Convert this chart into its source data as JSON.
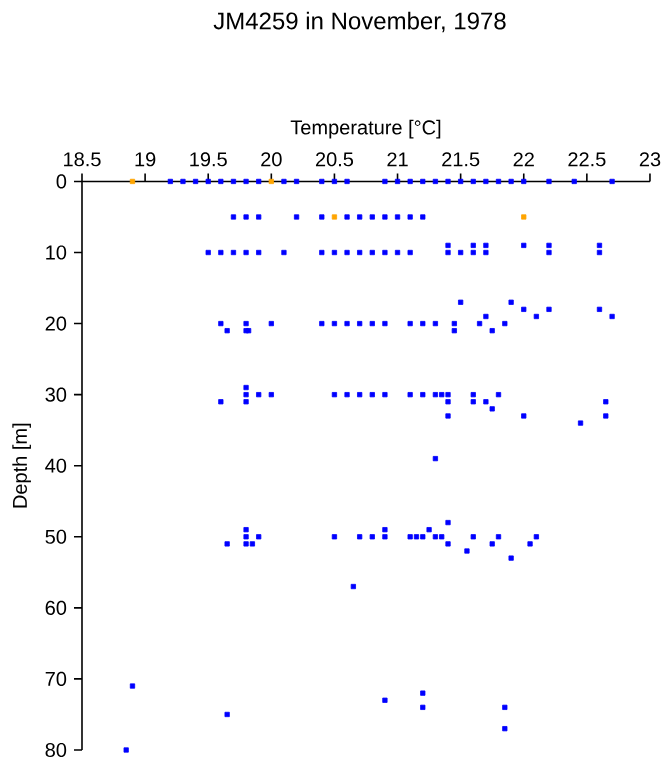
{
  "chart_data": {
    "type": "scatter",
    "title": "JM4259 in November, 1978",
    "xlabel": "Temperature [°C]",
    "ylabel": "Depth [m]",
    "xlim": [
      18.5,
      23
    ],
    "xticks": [
      18.5,
      19,
      19.5,
      20,
      20.5,
      21,
      21.5,
      22,
      22.5,
      23
    ],
    "ylim": [
      80,
      0
    ],
    "yticks": [
      0,
      10,
      20,
      30,
      40,
      50,
      60,
      70,
      80
    ],
    "marker": "square",
    "series": [
      {
        "color": "#0000ff",
        "x": [
          19.2,
          19.3,
          19.4,
          19.5,
          19.6,
          19.7,
          19.8,
          19.9,
          20.1,
          20.2,
          20.4,
          20.5,
          20.6,
          20.9,
          21.0,
          21.1,
          21.2,
          21.3,
          21.4,
          21.5,
          21.6,
          21.7,
          21.8,
          21.9,
          22.0,
          22.2,
          22.4,
          22.7,
          19.7,
          19.8,
          19.9,
          20.2,
          20.4,
          20.6,
          20.7,
          20.8,
          20.9,
          21.0,
          21.1,
          21.2,
          19.5,
          19.6,
          19.7,
          19.8,
          19.9,
          20.1,
          20.4,
          20.5,
          20.6,
          20.7,
          20.8,
          20.9,
          21.0,
          21.1,
          21.4,
          21.5,
          21.6,
          21.7,
          22.2,
          22.6,
          21.4,
          21.6,
          21.7,
          22.0,
          22.2,
          22.6,
          19.6,
          19.8,
          20.0,
          20.4,
          20.5,
          20.6,
          20.7,
          20.8,
          20.9,
          21.1,
          21.2,
          21.3,
          21.45,
          21.65,
          21.85,
          19.65,
          19.8,
          19.82,
          21.45,
          21.75,
          21.5,
          21.9,
          22.0,
          22.2,
          22.6,
          21.7,
          22.1,
          22.7,
          19.8,
          19.8,
          19.9,
          20.0,
          20.5,
          20.6,
          20.7,
          20.8,
          20.9,
          21.1,
          21.2,
          21.3,
          21.35,
          21.4,
          21.6,
          21.8,
          19.6,
          19.8,
          21.4,
          21.6,
          21.7,
          22.65,
          21.75,
          21.4,
          22.0,
          22.65,
          22.45,
          21.3,
          21.4,
          19.8,
          20.9,
          21.25,
          19.8,
          19.9,
          20.5,
          20.7,
          20.8,
          20.9,
          21.1,
          21.15,
          21.2,
          21.3,
          21.35,
          21.6,
          21.8,
          22.1,
          19.65,
          19.8,
          19.85,
          21.4,
          21.75,
          22.05,
          21.55,
          21.9,
          20.65,
          18.9,
          21.2,
          20.9,
          21.2,
          21.85,
          19.65,
          21.85,
          18.85
        ],
        "values": [
          0,
          0,
          0,
          0,
          0,
          0,
          0,
          0,
          0,
          0,
          0,
          0,
          0,
          0,
          0,
          0,
          0,
          0,
          0,
          0,
          0,
          0,
          0,
          0,
          0,
          0,
          0,
          0,
          5,
          5,
          5,
          5,
          5,
          5,
          5,
          5,
          5,
          5,
          5,
          5,
          10,
          10,
          10,
          10,
          10,
          10,
          10,
          10,
          10,
          10,
          10,
          10,
          10,
          10,
          10,
          10,
          10,
          10,
          10,
          10,
          9,
          9,
          9,
          9,
          9,
          9,
          20,
          20,
          20,
          20,
          20,
          20,
          20,
          20,
          20,
          20,
          20,
          20,
          20,
          20,
          20,
          21,
          21,
          21,
          21,
          21,
          17,
          17,
          18,
          18,
          18,
          19,
          19,
          19,
          29,
          30,
          30,
          30,
          30,
          30,
          30,
          30,
          30,
          30,
          30,
          30,
          30,
          30,
          30,
          30,
          31,
          31,
          31,
          31,
          31,
          31,
          32,
          33,
          33,
          33,
          34,
          39,
          48,
          49,
          49,
          49,
          50,
          50,
          50,
          50,
          50,
          50,
          50,
          50,
          50,
          50,
          50,
          50,
          50,
          50,
          51,
          51,
          51,
          51,
          51,
          51,
          52,
          53,
          57,
          71,
          72,
          73,
          74,
          74,
          75,
          77,
          80
        ]
      },
      {
        "color": "#ffa500",
        "x": [
          18.9,
          20.0,
          20.5,
          22.0
        ],
        "values": [
          0,
          0,
          5,
          5
        ]
      }
    ]
  }
}
